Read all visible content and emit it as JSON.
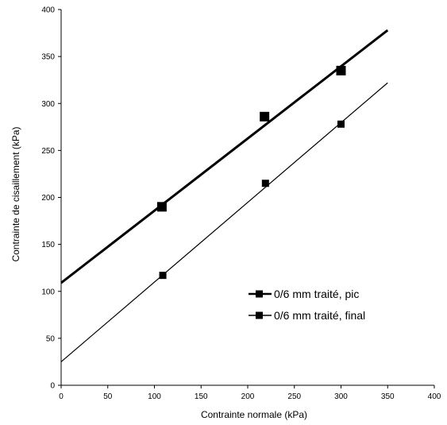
{
  "chart_data": {
    "type": "scatter",
    "xlabel": "Contrainte normale (kPa)",
    "ylabel": "Contrainte de cisaillement (kPa)",
    "xlim": [
      0,
      400
    ],
    "ylim": [
      0,
      400
    ],
    "xticks": [
      0,
      50,
      100,
      150,
      200,
      250,
      300,
      350,
      400
    ],
    "yticks": [
      0,
      50,
      100,
      150,
      200,
      250,
      300,
      350,
      400
    ],
    "grid": false,
    "legend_position": "center-right",
    "series": [
      {
        "name": "0/6 mm traité, pic",
        "color": "#000000",
        "marker": "square",
        "points": [
          [
            108,
            190
          ],
          [
            218,
            286
          ],
          [
            300,
            335
          ]
        ],
        "trendline": {
          "x": [
            0,
            350
          ],
          "y": [
            109,
            378
          ]
        }
      },
      {
        "name": "0/6 mm traité, final",
        "color": "#000000",
        "marker": "square",
        "points": [
          [
            109,
            117
          ],
          [
            219,
            215
          ],
          [
            300,
            278
          ]
        ],
        "trendline": {
          "x": [
            0,
            350
          ],
          "y": [
            25,
            322
          ]
        }
      }
    ]
  }
}
